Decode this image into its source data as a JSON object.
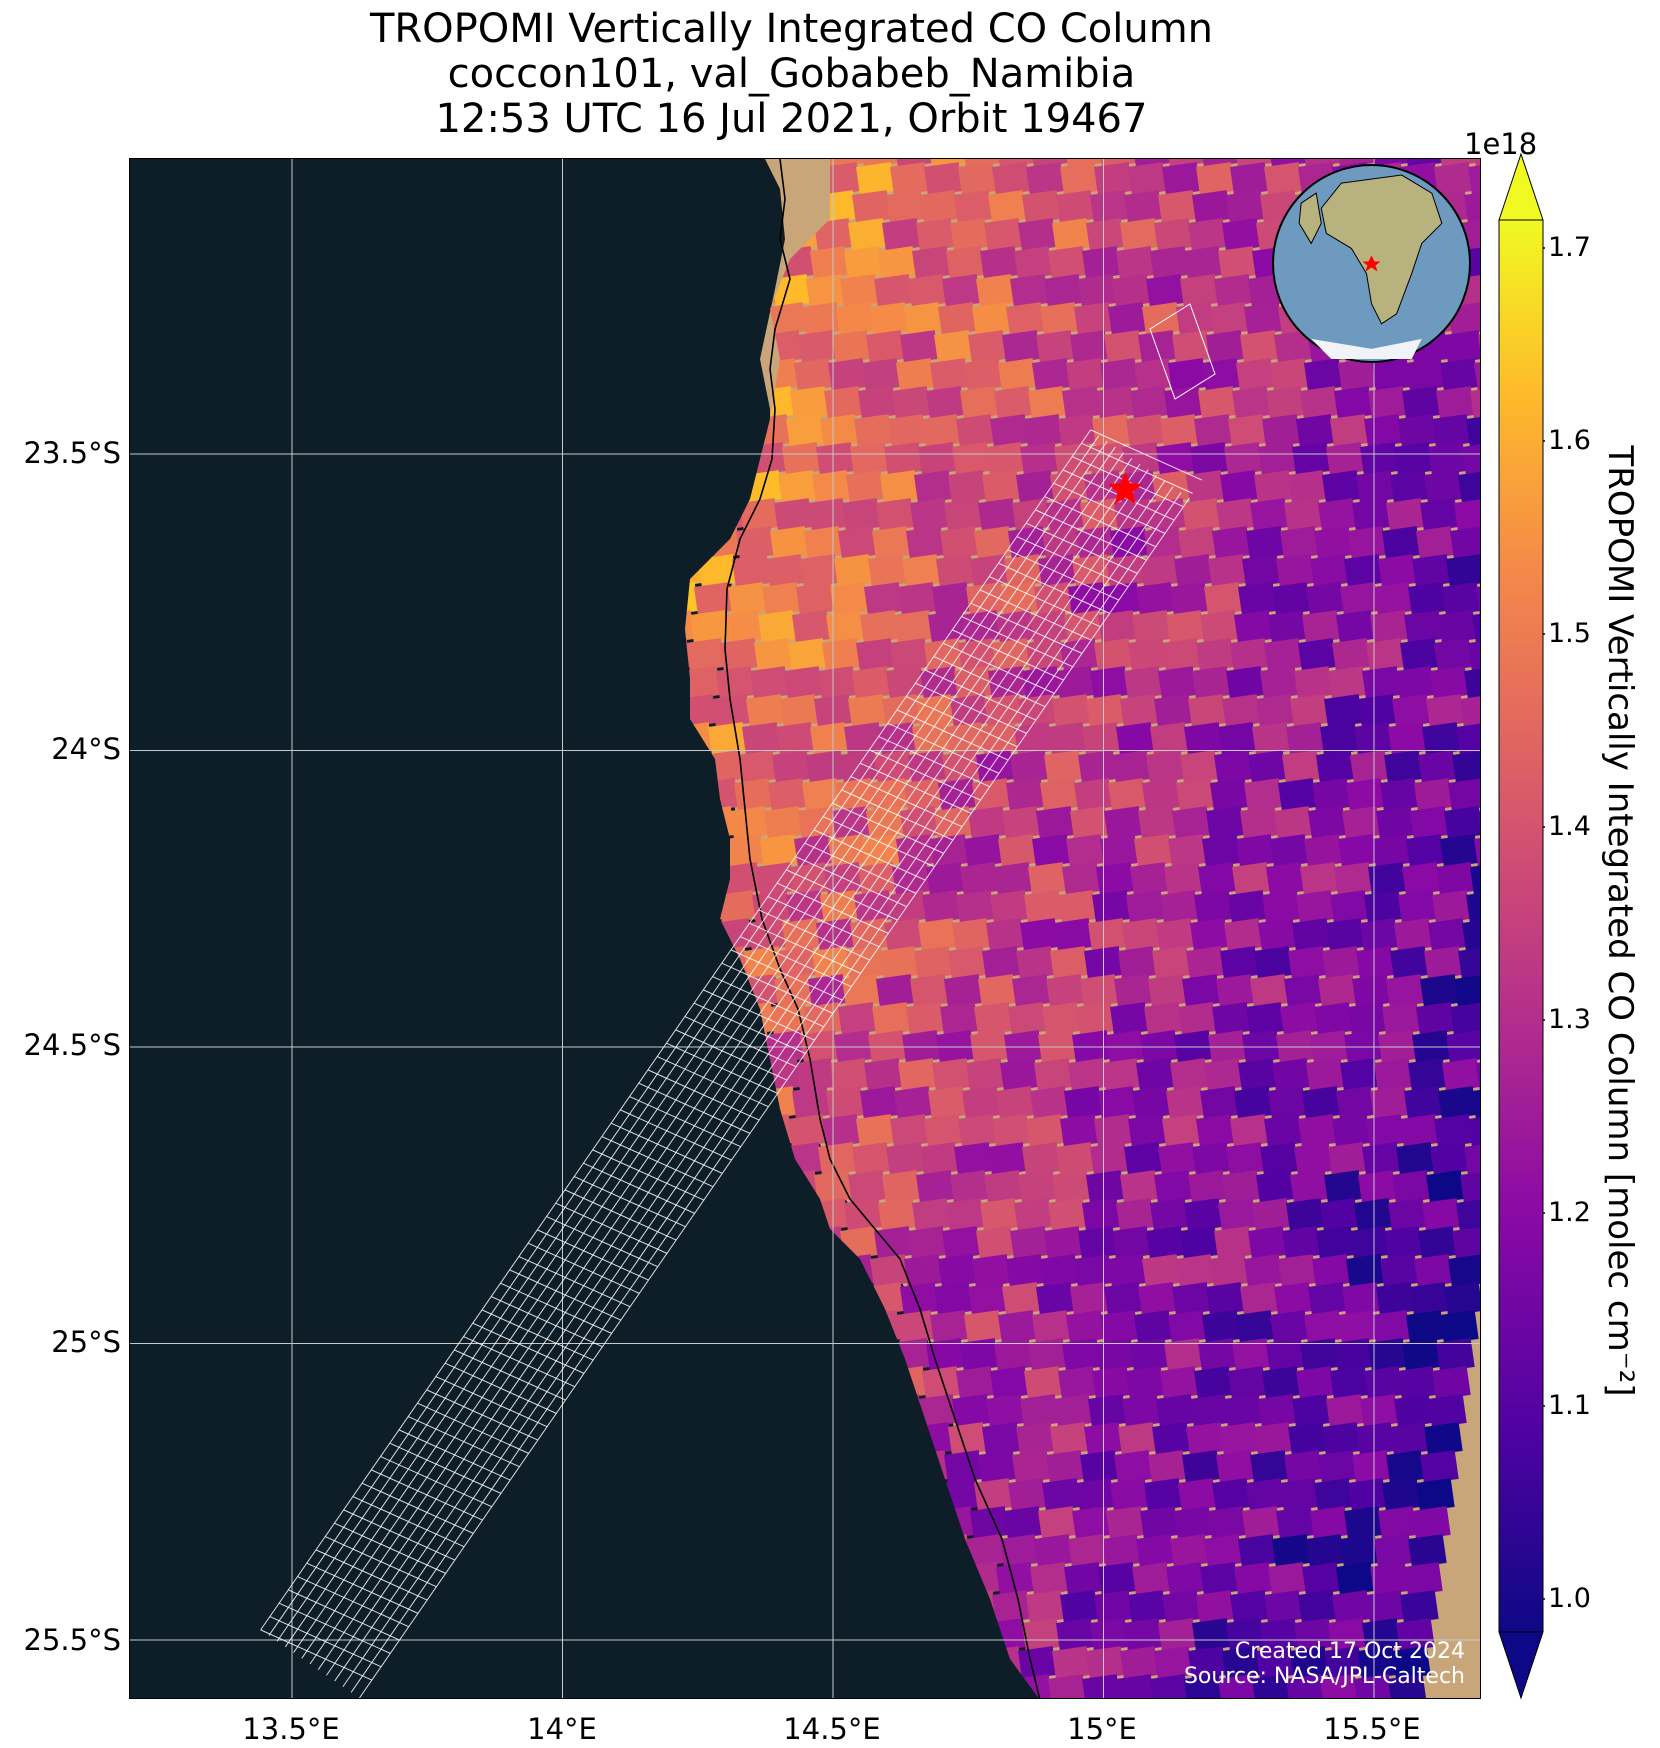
{
  "title": {
    "line1": "TROPOMI Vertically Integrated CO Column",
    "line2": "coccon101, val_Gobabeb_Namibia",
    "line3": "12:53 UTC 16 Jul 2021, Orbit 19467"
  },
  "map": {
    "lon_ticks": [
      "13.5°E",
      "14°E",
      "14.5°E",
      "15°E",
      "15.5°E"
    ],
    "lat_ticks": [
      "23.5°S",
      "24°S",
      "24.5°S",
      "25°S",
      "25.5°S"
    ],
    "lon_range": [
      13.2,
      15.7
    ],
    "lat_range": [
      -25.6,
      -23.0
    ],
    "site_marker": {
      "lon": 15.04,
      "lat": -23.56,
      "color": "#ff0000",
      "icon": "red-star-icon"
    },
    "ocean_color": "#0d1e28",
    "grid": true
  },
  "colorbar": {
    "label": "TROPOMI Vertically Integrated CO Column [molec cm⁻²]",
    "exponent": "1e18",
    "ticks": [
      "1.0",
      "1.1",
      "1.2",
      "1.3",
      "1.4",
      "1.5",
      "1.6",
      "1.7"
    ],
    "range": [
      0.95,
      1.72
    ],
    "colormap": "plasma",
    "extend": "both"
  },
  "credit": {
    "created": "Created 17 Oct 2024",
    "source": "Source: NASA/JPL-Caltech"
  },
  "inset": {
    "icon": "globe-africa-icon",
    "marker_color": "#ff0000"
  }
}
